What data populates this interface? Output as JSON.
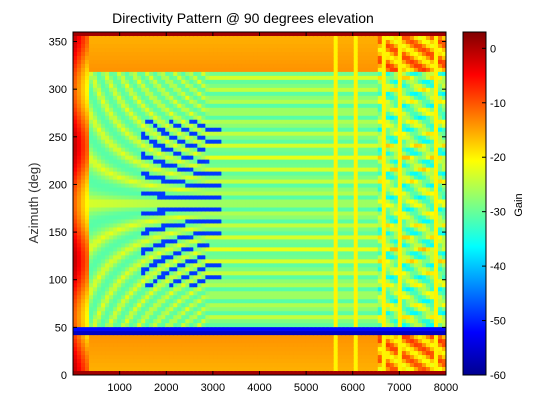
{
  "chart_data": {
    "type": "heatmap",
    "title": "Directivity Pattern @ 90 degrees elevation",
    "xlabel": "",
    "ylabel": "Azimuth (deg)",
    "xlim": [
      0,
      8000
    ],
    "ylim": [
      0,
      360
    ],
    "x_ticks": [
      1000,
      2000,
      3000,
      4000,
      5000,
      6000,
      7000,
      8000
    ],
    "y_ticks": [
      0,
      50,
      100,
      150,
      200,
      250,
      300,
      350
    ],
    "colorbar": {
      "label": "Gain",
      "colormap": "jet",
      "range": [
        -60,
        3
      ],
      "ticks": [
        0,
        -10,
        -20,
        -30,
        -40,
        -50,
        -60
      ]
    },
    "features": {
      "high_gain_azimuth_bands_deg": [
        0,
        360
      ],
      "deep_null_azimuth_deg": 45,
      "low_freq_high_gain_region_hz": [
        0,
        400
      ],
      "vertical_artifact_lines_hz": [
        5600,
        6100,
        6700,
        7000,
        7400,
        7800
      ]
    }
  }
}
